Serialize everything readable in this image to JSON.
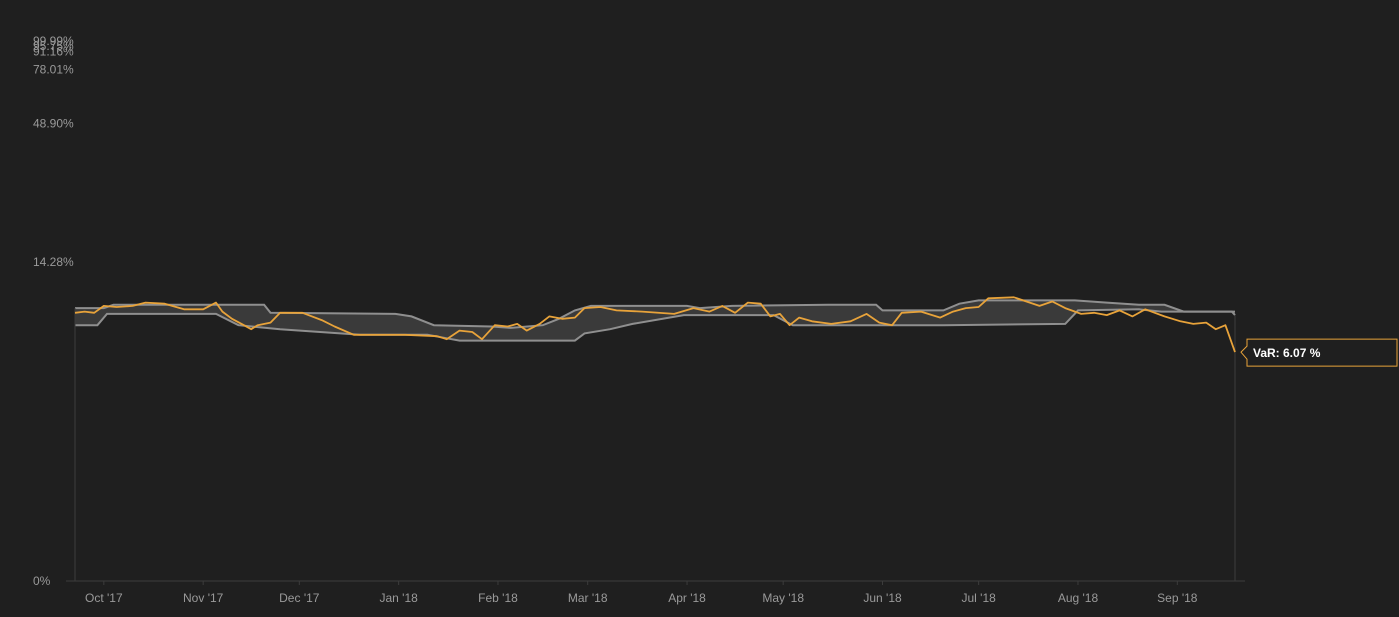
{
  "chart_data": {
    "type": "line",
    "y_scale": "log",
    "ylim": [
      0,
      99.99
    ],
    "y_tick_labels": [
      "99.99%",
      "95.75%",
      "91.16%",
      "78.01%",
      "48.90%",
      "14.28%",
      "0%"
    ],
    "y_tick_values": [
      99.99,
      95.75,
      91.16,
      78.01,
      48.9,
      14.28,
      0
    ],
    "x_tick_labels": [
      "Oct '17",
      "Nov '17",
      "Dec '17",
      "Jan '18",
      "Feb '18",
      "Mar '18",
      "Apr '18",
      "May '18",
      "Jun '18",
      "Jul '18",
      "Aug '18",
      "Sep '18"
    ],
    "x_tick_dates": [
      "2017-10-01",
      "2017-11-01",
      "2017-12-01",
      "2018-01-01",
      "2018-02-01",
      "2018-03-01",
      "2018-04-01",
      "2018-05-01",
      "2018-06-01",
      "2018-07-01",
      "2018-08-01",
      "2018-09-01"
    ],
    "xlim": [
      "2017-09-22",
      "2018-09-19"
    ],
    "grid": false,
    "colors": {
      "var_line": "#e8a33a",
      "band_edges": "#8f8f8f",
      "band_fill": "#3a3a3a",
      "axis": "#3c3c3c"
    },
    "band": {
      "upper": [
        {
          "x": "2017-09-22",
          "y": 9.3
        },
        {
          "x": "2017-10-01",
          "y": 9.3
        },
        {
          "x": "2017-10-04",
          "y": 9.6
        },
        {
          "x": "2017-11-20",
          "y": 9.6
        },
        {
          "x": "2017-11-22",
          "y": 8.9
        },
        {
          "x": "2017-12-31",
          "y": 8.8
        },
        {
          "x": "2018-01-05",
          "y": 8.6
        },
        {
          "x": "2018-01-12",
          "y": 7.9
        },
        {
          "x": "2018-01-30",
          "y": 7.8
        },
        {
          "x": "2018-02-05",
          "y": 7.7
        },
        {
          "x": "2018-02-15",
          "y": 7.9
        },
        {
          "x": "2018-02-20",
          "y": 8.4
        },
        {
          "x": "2018-02-25",
          "y": 9.1
        },
        {
          "x": "2018-03-02",
          "y": 9.5
        },
        {
          "x": "2018-04-01",
          "y": 9.5
        },
        {
          "x": "2018-04-05",
          "y": 9.3
        },
        {
          "x": "2018-04-15",
          "y": 9.5
        },
        {
          "x": "2018-05-15",
          "y": 9.6
        },
        {
          "x": "2018-05-30",
          "y": 9.6
        },
        {
          "x": "2018-06-01",
          "y": 9.1
        },
        {
          "x": "2018-06-20",
          "y": 9.1
        },
        {
          "x": "2018-06-25",
          "y": 9.7
        },
        {
          "x": "2018-07-01",
          "y": 10.0
        },
        {
          "x": "2018-07-31",
          "y": 10.0
        },
        {
          "x": "2018-08-10",
          "y": 9.8
        },
        {
          "x": "2018-08-20",
          "y": 9.6
        },
        {
          "x": "2018-08-28",
          "y": 9.6
        },
        {
          "x": "2018-09-03",
          "y": 9.0
        },
        {
          "x": "2018-09-18",
          "y": 9.0
        },
        {
          "x": "2018-09-19",
          "y": 8.7
        }
      ],
      "lower": [
        {
          "x": "2017-09-22",
          "y": 7.9
        },
        {
          "x": "2017-09-29",
          "y": 7.9
        },
        {
          "x": "2017-10-02",
          "y": 8.8
        },
        {
          "x": "2017-11-05",
          "y": 8.8
        },
        {
          "x": "2017-11-12",
          "y": 7.9
        },
        {
          "x": "2017-11-25",
          "y": 7.6
        },
        {
          "x": "2017-12-20",
          "y": 7.2
        },
        {
          "x": "2018-01-10",
          "y": 7.2
        },
        {
          "x": "2018-01-15",
          "y": 7.0
        },
        {
          "x": "2018-01-20",
          "y": 6.8
        },
        {
          "x": "2018-02-25",
          "y": 6.8
        },
        {
          "x": "2018-02-28",
          "y": 7.3
        },
        {
          "x": "2018-03-08",
          "y": 7.6
        },
        {
          "x": "2018-03-15",
          "y": 8.0
        },
        {
          "x": "2018-03-31",
          "y": 8.7
        },
        {
          "x": "2018-04-28",
          "y": 8.7
        },
        {
          "x": "2018-05-04",
          "y": 7.9
        },
        {
          "x": "2018-06-20",
          "y": 7.9
        },
        {
          "x": "2018-07-28",
          "y": 8.0
        },
        {
          "x": "2018-08-01",
          "y": 9.1
        },
        {
          "x": "2018-08-20",
          "y": 9.2
        },
        {
          "x": "2018-08-27",
          "y": 9.0
        },
        {
          "x": "2018-09-19",
          "y": 9.0
        }
      ]
    },
    "series": [
      {
        "points": [
          {
            "x": "2017-09-22",
            "y": 8.9
          },
          {
            "x": "2017-09-25",
            "y": 9.0
          },
          {
            "x": "2017-09-28",
            "y": 8.9
          },
          {
            "x": "2017-10-01",
            "y": 9.5
          },
          {
            "x": "2017-10-05",
            "y": 9.4
          },
          {
            "x": "2017-10-10",
            "y": 9.5
          },
          {
            "x": "2017-10-14",
            "y": 9.8
          },
          {
            "x": "2017-10-20",
            "y": 9.7
          },
          {
            "x": "2017-10-26",
            "y": 9.2
          },
          {
            "x": "2017-11-01",
            "y": 9.2
          },
          {
            "x": "2017-11-05",
            "y": 9.8
          },
          {
            "x": "2017-11-07",
            "y": 9.0
          },
          {
            "x": "2017-11-10",
            "y": 8.4
          },
          {
            "x": "2017-11-13",
            "y": 8.0
          },
          {
            "x": "2017-11-16",
            "y": 7.6
          },
          {
            "x": "2017-11-18",
            "y": 7.9
          },
          {
            "x": "2017-11-22",
            "y": 8.1
          },
          {
            "x": "2017-11-25",
            "y": 8.9
          },
          {
            "x": "2017-12-02",
            "y": 8.9
          },
          {
            "x": "2017-12-08",
            "y": 8.3
          },
          {
            "x": "2017-12-12",
            "y": 7.8
          },
          {
            "x": "2017-12-18",
            "y": 7.2
          },
          {
            "x": "2018-01-03",
            "y": 7.2
          },
          {
            "x": "2018-01-13",
            "y": 7.1
          },
          {
            "x": "2018-01-16",
            "y": 6.9
          },
          {
            "x": "2018-01-20",
            "y": 7.5
          },
          {
            "x": "2018-01-24",
            "y": 7.4
          },
          {
            "x": "2018-01-27",
            "y": 6.9
          },
          {
            "x": "2018-01-31",
            "y": 7.9
          },
          {
            "x": "2018-02-04",
            "y": 7.8
          },
          {
            "x": "2018-02-07",
            "y": 8.0
          },
          {
            "x": "2018-02-10",
            "y": 7.5
          },
          {
            "x": "2018-02-14",
            "y": 8.0
          },
          {
            "x": "2018-02-17",
            "y": 8.6
          },
          {
            "x": "2018-02-21",
            "y": 8.4
          },
          {
            "x": "2018-02-25",
            "y": 8.5
          },
          {
            "x": "2018-02-28",
            "y": 9.3
          },
          {
            "x": "2018-03-05",
            "y": 9.4
          },
          {
            "x": "2018-03-10",
            "y": 9.1
          },
          {
            "x": "2018-03-18",
            "y": 9.0
          },
          {
            "x": "2018-03-28",
            "y": 8.8
          },
          {
            "x": "2018-04-03",
            "y": 9.3
          },
          {
            "x": "2018-04-08",
            "y": 9.0
          },
          {
            "x": "2018-04-12",
            "y": 9.5
          },
          {
            "x": "2018-04-16",
            "y": 8.9
          },
          {
            "x": "2018-04-20",
            "y": 9.8
          },
          {
            "x": "2018-04-24",
            "y": 9.7
          },
          {
            "x": "2018-04-27",
            "y": 8.6
          },
          {
            "x": "2018-04-30",
            "y": 8.8
          },
          {
            "x": "2018-05-03",
            "y": 7.9
          },
          {
            "x": "2018-05-06",
            "y": 8.5
          },
          {
            "x": "2018-05-10",
            "y": 8.2
          },
          {
            "x": "2018-05-16",
            "y": 8.0
          },
          {
            "x": "2018-05-22",
            "y": 8.2
          },
          {
            "x": "2018-05-27",
            "y": 8.8
          },
          {
            "x": "2018-05-31",
            "y": 8.1
          },
          {
            "x": "2018-06-04",
            "y": 7.9
          },
          {
            "x": "2018-06-07",
            "y": 8.9
          },
          {
            "x": "2018-06-13",
            "y": 9.0
          },
          {
            "x": "2018-06-19",
            "y": 8.5
          },
          {
            "x": "2018-06-23",
            "y": 9.0
          },
          {
            "x": "2018-06-27",
            "y": 9.3
          },
          {
            "x": "2018-07-01",
            "y": 9.4
          },
          {
            "x": "2018-07-04",
            "y": 10.2
          },
          {
            "x": "2018-07-12",
            "y": 10.3
          },
          {
            "x": "2018-07-20",
            "y": 9.5
          },
          {
            "x": "2018-07-24",
            "y": 9.9
          },
          {
            "x": "2018-07-28",
            "y": 9.3
          },
          {
            "x": "2018-08-02",
            "y": 8.8
          },
          {
            "x": "2018-08-06",
            "y": 8.9
          },
          {
            "x": "2018-08-10",
            "y": 8.7
          },
          {
            "x": "2018-08-14",
            "y": 9.1
          },
          {
            "x": "2018-08-18",
            "y": 8.6
          },
          {
            "x": "2018-08-22",
            "y": 9.2
          },
          {
            "x": "2018-08-28",
            "y": 8.6
          },
          {
            "x": "2018-09-02",
            "y": 8.2
          },
          {
            "x": "2018-09-06",
            "y": 8.0
          },
          {
            "x": "2018-09-10",
            "y": 8.1
          },
          {
            "x": "2018-09-13",
            "y": 7.6
          },
          {
            "x": "2018-09-16",
            "y": 7.9
          },
          {
            "x": "2018-09-19",
            "y": 6.07
          }
        ]
      }
    ],
    "annotation": {
      "text": "VaR: 6.07 %",
      "x": "2018-09-19",
      "y": 6.07
    }
  }
}
